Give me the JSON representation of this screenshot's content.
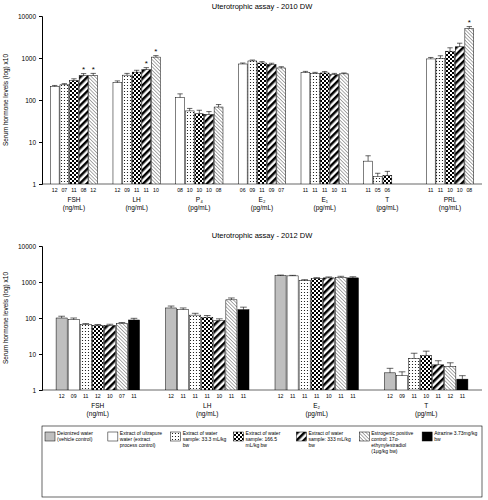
{
  "chart_data": [
    {
      "type": "bar",
      "title": "Uterotrophic assay - 2010 DW",
      "y_label": "Serum hormone levels (log) x10",
      "log": "y",
      "grid": false,
      "categories": [
        "FSH (ng/mL)",
        "LH (ng/mL)",
        "P₄ (pg/mL)",
        "E₂ (pg/mL)",
        "E₁ (pg/mL)",
        "T (pg/mL)",
        "PRL (ng/mL)"
      ],
      "ylim": [
        1,
        10000
      ],
      "yticks": [
        1,
        10,
        100,
        1000,
        10000
      ],
      "series": [
        {
          "color": "#ffffff",
          "values": [
            210,
            260,
            115,
            720,
            450,
            3.5,
            950
          ],
          "errors": [
            12,
            25,
            25,
            40,
            30,
            1.2,
            80
          ],
          "n": [
            "12",
            "12",
            "08",
            "06",
            "11",
            "11",
            "11"
          ]
        },
        {
          "color": "#ffffff",
          "values": [
            230,
            390,
            55,
            850,
            430,
            1.5,
            980
          ],
          "errors": [
            15,
            40,
            8,
            45,
            25,
            0.3,
            150
          ],
          "n": [
            "07",
            "09",
            "10",
            "09",
            "11",
            "05",
            "11"
          ]
        },
        {
          "color": "#ffffff",
          "values": [
            290,
            460,
            47,
            760,
            440,
            1.6,
            1450
          ],
          "errors": [
            30,
            50,
            10,
            60,
            35,
            0.4,
            300
          ],
          "n": [
            "11",
            "11",
            "10",
            "11",
            "11",
            "06",
            "10"
          ]
        },
        {
          "color": "#ffffff",
          "values": [
            380,
            530,
            45,
            700,
            400,
            null,
            1850
          ],
          "errors": [
            45,
            60,
            8,
            50,
            30,
            null,
            400
          ],
          "n": [
            "08",
            "11",
            "10",
            "09",
            "10",
            null,
            "10"
          ],
          "stars": [
            "*",
            "*",
            null,
            null,
            null,
            null,
            null
          ]
        },
        {
          "color": "#ffffff",
          "values": [
            380,
            1050,
            68,
            580,
            420,
            null,
            5000
          ],
          "errors": [
            50,
            90,
            10,
            40,
            20,
            null,
            600
          ],
          "n": [
            "12",
            "10",
            "08",
            "07",
            "11",
            null,
            "08"
          ],
          "stars": [
            "*",
            "*",
            null,
            null,
            null,
            null,
            "*"
          ]
        }
      ]
    },
    {
      "type": "bar",
      "title": "Uterotrophic assay - 2012 DW",
      "y_label": "Serum hormone levels (log) x10",
      "log": "y",
      "grid": false,
      "legend": "bottom",
      "categories": [
        "FSH (ng/mL)",
        "LH (ng/mL)",
        "E₂ (pg/mL)",
        "T (pg/mL)"
      ],
      "ylim": [
        1,
        10000
      ],
      "yticks": [
        1,
        10,
        100,
        1000,
        10000
      ],
      "series": [
        {
          "name": "Deionized water (vehicle control)",
          "color": "#bfbfbf",
          "values": [
            100,
            190,
            1500,
            3
          ],
          "errors": [
            12,
            25,
            60,
            1
          ],
          "n": [
            "12",
            "12",
            "12",
            "12"
          ]
        },
        {
          "name": "Extract of ultrapure water (extract process control)",
          "color": "#ffffff",
          "values": [
            90,
            170,
            1480,
            2.5
          ],
          "errors": [
            10,
            20,
            50,
            0.7
          ],
          "n": [
            "09",
            "11",
            "11",
            "09"
          ]
        },
        {
          "name": "Extract of water sample: 33.3 mL/kg bw",
          "color": "#ffffff",
          "values": [
            65,
            120,
            1100,
            7.5
          ],
          "errors": [
            5,
            15,
            60,
            3
          ],
          "n": [
            "11",
            "11",
            "11",
            "11"
          ]
        },
        {
          "name": "Extract of water sample: 166.5 mL/kg bw",
          "color": "#ffffff",
          "values": [
            62,
            105,
            1250,
            9
          ],
          "errors": [
            4,
            12,
            70,
            3
          ],
          "n": [
            "12",
            "11",
            "11",
            "10"
          ]
        },
        {
          "name": "Extract of water sample: 333 mL/kg bw",
          "color": "#ffffff",
          "values": [
            62,
            85,
            1300,
            5
          ],
          "errors": [
            5,
            10,
            80,
            1.5
          ],
          "n": [
            "10",
            "10",
            "10",
            "11"
          ]
        },
        {
          "name": "Estrogenic positive control: 17α-ethynylestradiol (1μg/kg bw)",
          "color": "#ffffff",
          "values": [
            70,
            320,
            1350,
            4.5
          ],
          "errors": [
            5,
            40,
            90,
            1.2
          ],
          "n": [
            "07",
            "11",
            "11",
            "12"
          ]
        },
        {
          "name": "Atrazine 3.73mg/kg bw",
          "color": "#000000",
          "values": [
            88,
            170,
            1300,
            2
          ],
          "errors": [
            10,
            30,
            100,
            0.5
          ],
          "n": [
            "11",
            "11",
            "11",
            "11"
          ]
        }
      ]
    }
  ]
}
